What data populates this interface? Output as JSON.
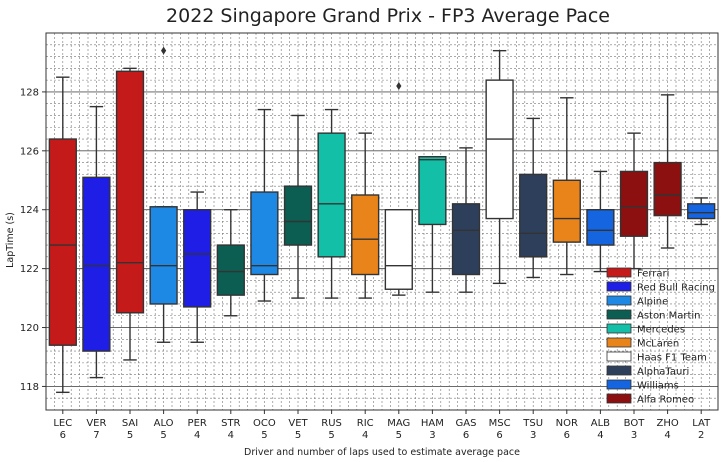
{
  "chart_data": {
    "type": "box",
    "title": "2022 Singapore Grand Prix - FP3 Average Pace",
    "xlabel": "Driver and number of laps used to estimate average pace",
    "ylabel": "LapTime (s)",
    "ylim": [
      117.2,
      130.0
    ],
    "yticks": [
      118,
      120,
      122,
      124,
      126,
      128
    ],
    "grid": "major solid, minor dotted",
    "legend_position": "lower-right",
    "categories": [
      "LEC",
      "VER",
      "SAI",
      "ALO",
      "PER",
      "STR",
      "OCO",
      "VET",
      "RUS",
      "RIC",
      "MAG",
      "HAM",
      "GAS",
      "MSC",
      "TSU",
      "NOR",
      "ALB",
      "BOT",
      "ZHO",
      "LAT"
    ],
    "laps": [
      "6",
      "7",
      "5",
      "5",
      "4",
      "4",
      "5",
      "5",
      "5",
      "4",
      "5",
      "3",
      "6",
      "6",
      "3",
      "6",
      "4",
      "3",
      "4",
      "2"
    ],
    "boxes": [
      {
        "driver": "LEC",
        "team": "Ferrari",
        "whislo": 117.8,
        "q1": 119.4,
        "med": 122.8,
        "q3": 126.4,
        "whishi": 128.5,
        "fliers": []
      },
      {
        "driver": "VER",
        "team": "Red Bull Racing",
        "whislo": 118.3,
        "q1": 119.2,
        "med": 122.1,
        "q3": 125.1,
        "whishi": 127.5,
        "fliers": []
      },
      {
        "driver": "SAI",
        "team": "Ferrari",
        "whislo": 118.9,
        "q1": 120.5,
        "med": 122.2,
        "q3": 128.7,
        "whishi": 128.8,
        "fliers": []
      },
      {
        "driver": "ALO",
        "team": "Alpine",
        "whislo": 119.5,
        "q1": 120.8,
        "med": 122.1,
        "q3": 124.1,
        "whishi": 124.1,
        "fliers": [
          129.4
        ]
      },
      {
        "driver": "PER",
        "team": "Red Bull Racing",
        "whislo": 119.5,
        "q1": 120.7,
        "med": 122.5,
        "q3": 124.0,
        "whishi": 124.6,
        "fliers": []
      },
      {
        "driver": "STR",
        "team": "Aston Martin",
        "whislo": 120.4,
        "q1": 121.1,
        "med": 121.9,
        "q3": 122.8,
        "whishi": 124.0,
        "fliers": []
      },
      {
        "driver": "OCO",
        "team": "Alpine",
        "whislo": 120.9,
        "q1": 121.8,
        "med": 122.1,
        "q3": 124.6,
        "whishi": 127.4,
        "fliers": []
      },
      {
        "driver": "VET",
        "team": "Aston Martin",
        "whislo": 121.0,
        "q1": 122.8,
        "med": 123.6,
        "q3": 124.8,
        "whishi": 127.2,
        "fliers": []
      },
      {
        "driver": "RUS",
        "team": "Mercedes",
        "whislo": 121.0,
        "q1": 122.4,
        "med": 124.2,
        "q3": 126.6,
        "whishi": 127.4,
        "fliers": []
      },
      {
        "driver": "RIC",
        "team": "McLaren",
        "whislo": 121.0,
        "q1": 121.8,
        "med": 123.0,
        "q3": 124.5,
        "whishi": 126.6,
        "fliers": []
      },
      {
        "driver": "MAG",
        "team": "Haas F1 Team",
        "whislo": 121.1,
        "q1": 121.3,
        "med": 122.1,
        "q3": 124.0,
        "whishi": 124.0,
        "fliers": [
          128.2
        ]
      },
      {
        "driver": "HAM",
        "team": "Mercedes",
        "whislo": 121.2,
        "q1": 123.5,
        "med": 125.7,
        "q3": 125.8,
        "whishi": 125.8,
        "fliers": []
      },
      {
        "driver": "GAS",
        "team": "AlphaTauri",
        "whislo": 121.2,
        "q1": 121.8,
        "med": 123.3,
        "q3": 124.2,
        "whishi": 126.1,
        "fliers": []
      },
      {
        "driver": "MSC",
        "team": "Haas F1 Team",
        "whislo": 121.5,
        "q1": 123.7,
        "med": 126.4,
        "q3": 128.4,
        "whishi": 129.4,
        "fliers": []
      },
      {
        "driver": "TSU",
        "team": "AlphaTauri",
        "whislo": 121.7,
        "q1": 122.4,
        "med": 123.2,
        "q3": 125.2,
        "whishi": 127.1,
        "fliers": []
      },
      {
        "driver": "NOR",
        "team": "McLaren",
        "whislo": 121.8,
        "q1": 122.9,
        "med": 123.7,
        "q3": 125.0,
        "whishi": 127.8,
        "fliers": []
      },
      {
        "driver": "ALB",
        "team": "Williams",
        "whislo": 121.9,
        "q1": 122.8,
        "med": 123.3,
        "q3": 124.0,
        "whishi": 125.3,
        "fliers": []
      },
      {
        "driver": "BOT",
        "team": "Alfa Romeo",
        "whislo": 122.0,
        "q1": 123.1,
        "med": 124.1,
        "q3": 125.3,
        "whishi": 126.6,
        "fliers": []
      },
      {
        "driver": "ZHO",
        "team": "Alfa Romeo",
        "whislo": 122.7,
        "q1": 123.8,
        "med": 124.5,
        "q3": 125.6,
        "whishi": 127.9,
        "fliers": []
      },
      {
        "driver": "LAT",
        "team": "Williams",
        "whislo": 123.5,
        "q1": 123.7,
        "med": 123.9,
        "q3": 124.2,
        "whishi": 124.4,
        "fliers": []
      }
    ],
    "legend": [
      {
        "name": "Ferrari",
        "color": "#c41a1a"
      },
      {
        "name": "Red Bull Racing",
        "color": "#1e1ee6"
      },
      {
        "name": "Alpine",
        "color": "#1e88e5"
      },
      {
        "name": "Aston Martin",
        "color": "#0b5e51"
      },
      {
        "name": "Mercedes",
        "color": "#14bfa8"
      },
      {
        "name": "McLaren",
        "color": "#e8841a"
      },
      {
        "name": "Haas F1 Team",
        "color": "#ffffff"
      },
      {
        "name": "AlphaTauri",
        "color": "#2e3f5c"
      },
      {
        "name": "Williams",
        "color": "#1565e0"
      },
      {
        "name": "Alfa Romeo",
        "color": "#8c1010"
      }
    ]
  }
}
